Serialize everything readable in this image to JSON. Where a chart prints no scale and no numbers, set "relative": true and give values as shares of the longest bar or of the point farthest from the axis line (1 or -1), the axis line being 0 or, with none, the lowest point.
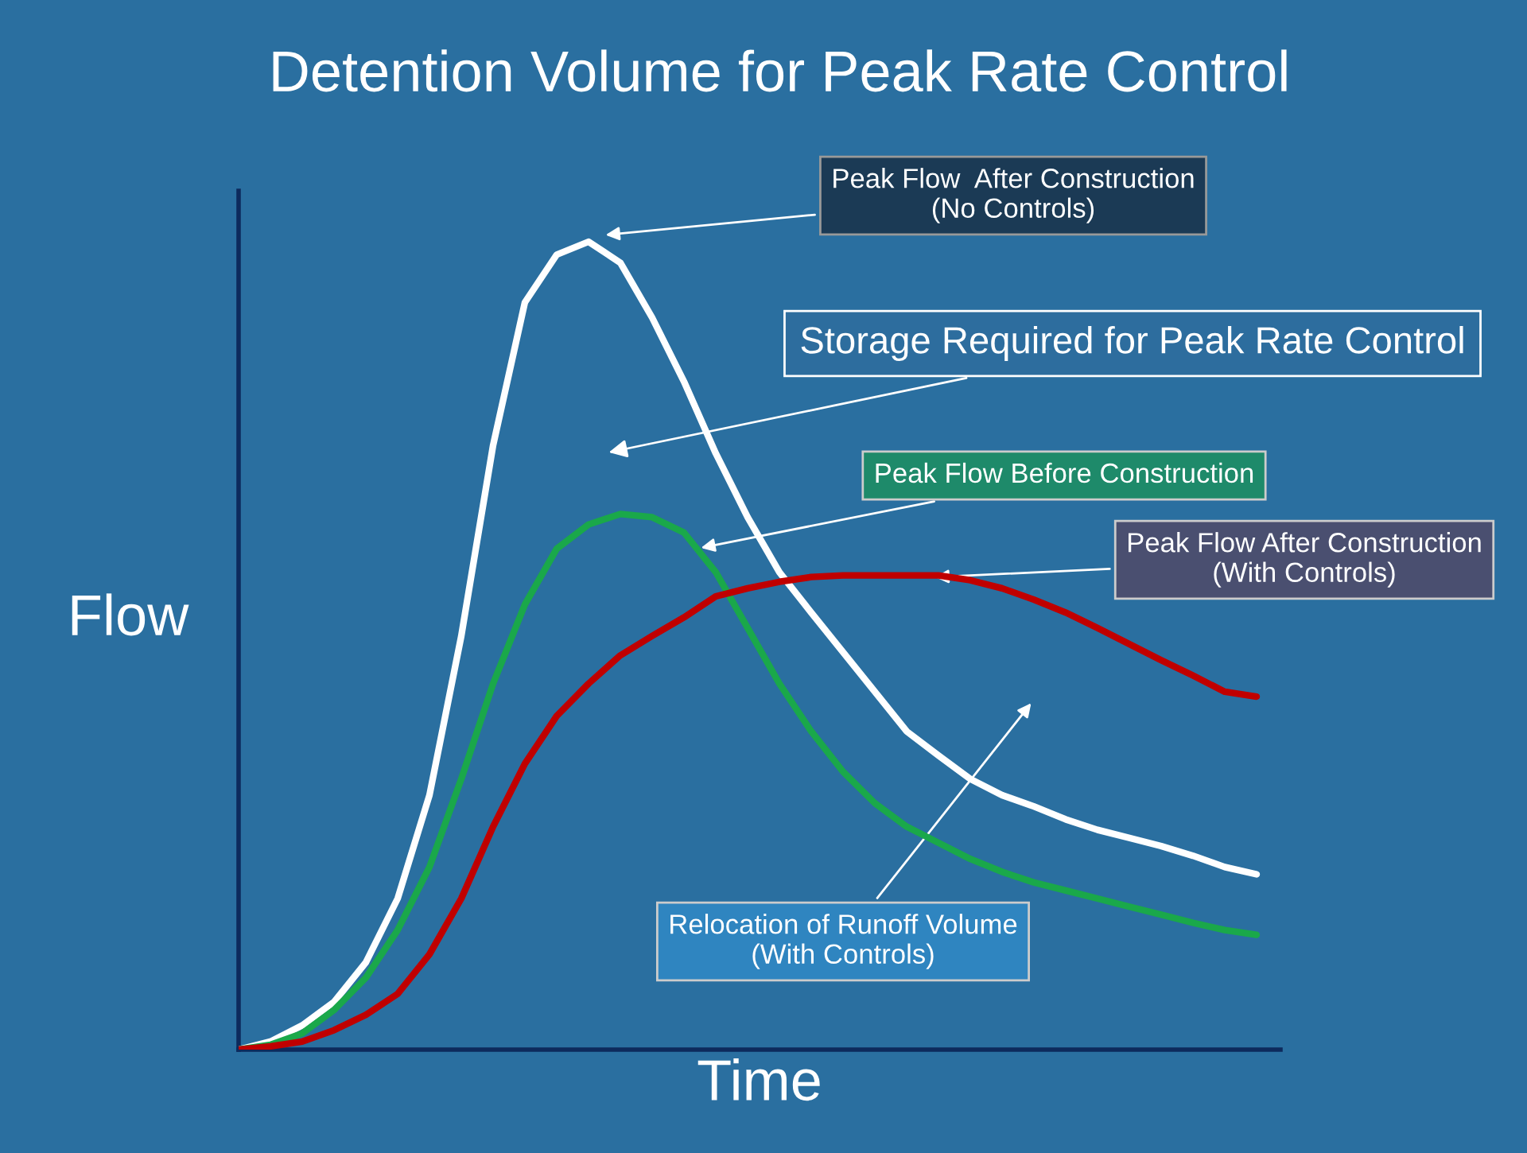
{
  "chart_data": {
    "type": "line",
    "title": "Detention Volume for Peak Rate Control",
    "xlabel": "Time",
    "ylabel": "Flow",
    "relative": true,
    "legend": false,
    "marker": "none",
    "line_style": "solid",
    "categories": [
      null,
      null,
      null,
      null,
      null,
      null,
      null,
      null,
      null,
      null,
      null,
      null,
      null,
      null,
      null,
      null,
      null,
      null,
      null,
      null,
      null,
      null,
      null,
      null,
      null,
      null,
      null,
      null,
      null,
      null,
      null,
      null,
      null
    ],
    "series": [
      {
        "color": "#ffffff",
        "values": [
          0,
          0.01,
          0.03,
          0.059,
          0.108,
          0.187,
          0.315,
          0.512,
          0.748,
          0.925,
          0.984,
          1,
          0.974,
          0.906,
          0.827,
          0.738,
          0.659,
          0.591,
          0.541,
          0.492,
          0.443,
          0.394,
          0.364,
          0.335,
          0.315,
          0.301,
          0.285,
          0.272,
          0.262,
          0.252,
          0.24,
          0.226,
          0.217
        ]
      },
      {
        "color": "#1aa84a",
        "values": [
          0,
          0.006,
          0.02,
          0.049,
          0.089,
          0.148,
          0.226,
          0.335,
          0.453,
          0.551,
          0.62,
          0.65,
          0.663,
          0.659,
          0.64,
          0.591,
          0.522,
          0.453,
          0.394,
          0.344,
          0.305,
          0.276,
          0.256,
          0.236,
          0.22,
          0.207,
          0.197,
          0.187,
          0.177,
          0.167,
          0.157,
          0.148,
          0.142
        ]
      },
      {
        "color": "#c00000",
        "values": [
          0,
          0.004,
          0.01,
          0.024,
          0.043,
          0.069,
          0.118,
          0.187,
          0.276,
          0.354,
          0.413,
          0.453,
          0.488,
          0.512,
          0.535,
          0.561,
          0.571,
          0.579,
          0.585,
          0.587,
          0.587,
          0.587,
          0.587,
          0.581,
          0.571,
          0.557,
          0.541,
          0.522,
          0.502,
          0.482,
          0.463,
          0.443,
          0.437
        ]
      }
    ],
    "annotations": [
      "Peak Flow  After Construction\n(No Controls)",
      "Storage Required for Peak Rate Control",
      "Peak Flow Before Construction",
      "Peak Flow After Construction\n(With Controls)",
      "Relocation of Runoff Volume\n(With Controls)"
    ]
  }
}
